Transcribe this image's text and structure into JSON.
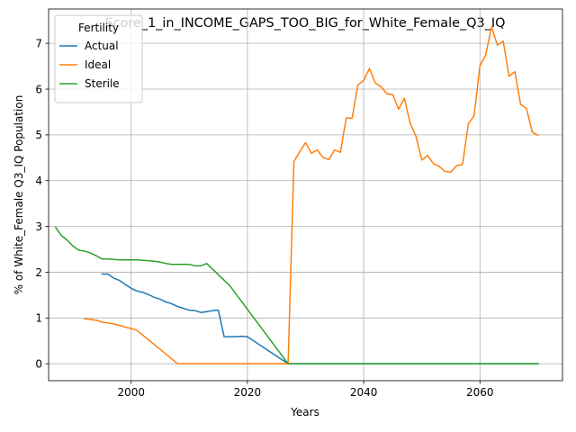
{
  "chart_data": {
    "type": "line",
    "title": "Score_1_in_INCOME_GAPS_TOO_BIG_for_White_Female_Q3_IQ",
    "xlabel": "Years",
    "ylabel": "% of White_Female Q3_IQ Population",
    "xlim": [
      1985.8,
      2074.2
    ],
    "ylim": [
      -0.37,
      7.75
    ],
    "xticks": [
      2000,
      2020,
      2040,
      2060
    ],
    "yticks": [
      0,
      1,
      2,
      3,
      4,
      5,
      6,
      7
    ],
    "grid": true,
    "legend": {
      "title": "Fertility",
      "position": "top-left"
    },
    "series": [
      {
        "name": "Actual",
        "color": "#1f77b4",
        "points": [
          [
            1995,
            1.96
          ],
          [
            1996,
            1.96
          ],
          [
            1997,
            1.87
          ],
          [
            1998,
            1.82
          ],
          [
            1999,
            1.73
          ],
          [
            2000,
            1.65
          ],
          [
            2001,
            1.59
          ],
          [
            2002,
            1.56
          ],
          [
            2003,
            1.51
          ],
          [
            2004,
            1.45
          ],
          [
            2005,
            1.41
          ],
          [
            2006,
            1.35
          ],
          [
            2007,
            1.31
          ],
          [
            2008,
            1.25
          ],
          [
            2009,
            1.21
          ],
          [
            2010,
            1.17
          ],
          [
            2011,
            1.16
          ],
          [
            2012,
            1.12
          ],
          [
            2013,
            1.14
          ],
          [
            2014,
            1.16
          ],
          [
            2015,
            1.17
          ],
          [
            2016,
            0.59
          ],
          [
            2017,
            0.59
          ],
          [
            2018,
            0.59
          ],
          [
            2019,
            0.6
          ],
          [
            2020,
            0.59
          ],
          [
            2027,
            0.0
          ],
          [
            2070,
            0.0
          ]
        ]
      },
      {
        "name": "Ideal",
        "color": "#ff7f0e",
        "points": [
          [
            1992,
            0.98
          ],
          [
            1993,
            0.97
          ],
          [
            1994,
            0.95
          ],
          [
            1995,
            0.91
          ],
          [
            1996,
            0.89
          ],
          [
            1997,
            0.87
          ],
          [
            1998,
            0.84
          ],
          [
            1999,
            0.8
          ],
          [
            2000,
            0.77
          ],
          [
            2001,
            0.73
          ],
          [
            2008,
            0.0
          ],
          [
            2027,
            0.0
          ],
          [
            2028,
            4.42
          ],
          [
            2029,
            4.63
          ],
          [
            2030,
            4.83
          ],
          [
            2031,
            4.6
          ],
          [
            2032,
            4.67
          ],
          [
            2033,
            4.51
          ],
          [
            2034,
            4.46
          ],
          [
            2035,
            4.67
          ],
          [
            2036,
            4.62
          ],
          [
            2037,
            5.37
          ],
          [
            2038,
            5.36
          ],
          [
            2039,
            6.09
          ],
          [
            2040,
            6.19
          ],
          [
            2041,
            6.45
          ],
          [
            2042,
            6.13
          ],
          [
            2043,
            6.05
          ],
          [
            2044,
            5.9
          ],
          [
            2045,
            5.88
          ],
          [
            2046,
            5.56
          ],
          [
            2047,
            5.8
          ],
          [
            2048,
            5.25
          ],
          [
            2049,
            4.97
          ],
          [
            2050,
            4.45
          ],
          [
            2051,
            4.55
          ],
          [
            2052,
            4.37
          ],
          [
            2053,
            4.31
          ],
          [
            2054,
            4.2
          ],
          [
            2055,
            4.19
          ],
          [
            2056,
            4.33
          ],
          [
            2057,
            4.35
          ],
          [
            2058,
            5.24
          ],
          [
            2059,
            5.42
          ],
          [
            2060,
            6.51
          ],
          [
            2061,
            6.75
          ],
          [
            2062,
            7.36
          ],
          [
            2063,
            6.96
          ],
          [
            2064,
            7.05
          ],
          [
            2065,
            6.28
          ],
          [
            2066,
            6.38
          ],
          [
            2067,
            5.66
          ],
          [
            2068,
            5.58
          ],
          [
            2069,
            5.06
          ],
          [
            2070,
            4.99
          ]
        ]
      },
      {
        "name": "Sterile",
        "color": "#2ca02c",
        "points": [
          [
            1987,
            2.98
          ],
          [
            1988,
            2.8
          ],
          [
            1989,
            2.7
          ],
          [
            1990,
            2.57
          ],
          [
            1991,
            2.48
          ],
          [
            1992,
            2.46
          ],
          [
            1993,
            2.42
          ],
          [
            1994,
            2.36
          ],
          [
            1995,
            2.29
          ],
          [
            1996,
            2.29
          ],
          [
            1997,
            2.28
          ],
          [
            1998,
            2.27
          ],
          [
            1999,
            2.27
          ],
          [
            2000,
            2.27
          ],
          [
            2001,
            2.27
          ],
          [
            2002,
            2.26
          ],
          [
            2003,
            2.25
          ],
          [
            2004,
            2.24
          ],
          [
            2005,
            2.22
          ],
          [
            2006,
            2.19
          ],
          [
            2007,
            2.17
          ],
          [
            2008,
            2.17
          ],
          [
            2009,
            2.17
          ],
          [
            2010,
            2.17
          ],
          [
            2011,
            2.14
          ],
          [
            2012,
            2.14
          ],
          [
            2013,
            2.19
          ],
          [
            2017,
            1.7
          ],
          [
            2027,
            0.0
          ],
          [
            2070,
            0.0
          ]
        ]
      }
    ]
  }
}
